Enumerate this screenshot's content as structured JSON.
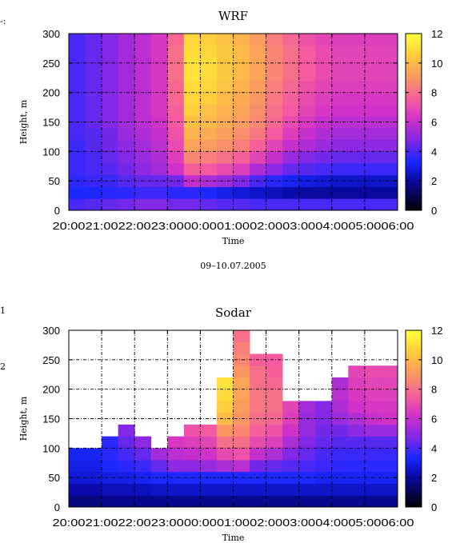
{
  "edge_marks": [
    "-:",
    "1",
    "2"
  ],
  "chart_data": [
    {
      "type": "heatmap",
      "title": "WRF",
      "xlabel": "Time",
      "ylabel": "Height, m",
      "date_label": "09–10.07.2005",
      "x_ticks": [
        "20:00",
        "21:00",
        "22:00",
        "23:00",
        "00:00",
        "01:00",
        "02:00",
        "03:00",
        "04:00",
        "05:00",
        "06:00"
      ],
      "y_ticks": [
        "0",
        "50",
        "100",
        "150",
        "200",
        "250",
        "300"
      ],
      "ylim": [
        0,
        300
      ],
      "time_start": "20:00",
      "time_step_minutes": 30,
      "height_levels_m": [
        20,
        40,
        60,
        80,
        100,
        120,
        140,
        160,
        180,
        200,
        220,
        240,
        260,
        280,
        300
      ],
      "colorbar": {
        "min": 0,
        "max": 12,
        "ticks": [
          "0",
          "2",
          "4",
          "6",
          "8",
          "10",
          "12"
        ]
      },
      "grid": true,
      "values": [
        [
          4.0,
          4.2,
          4.4,
          4.6,
          4.8,
          4.8,
          4.6,
          4.6,
          4.4,
          4.2,
          4.2,
          4.0,
          4.0,
          4.0,
          4.0,
          4.0,
          4.0,
          4.0,
          4.0,
          4.0
        ],
        [
          3.4,
          3.4,
          3.6,
          3.6,
          3.8,
          3.8,
          3.6,
          3.6,
          3.4,
          3.0,
          2.8,
          2.6,
          2.4,
          2.2,
          2.0,
          2.0,
          2.0,
          2.0,
          2.0,
          2.0
        ],
        [
          3.6,
          3.8,
          3.8,
          4.2,
          4.4,
          4.4,
          4.6,
          6.0,
          5.6,
          5.2,
          4.8,
          4.0,
          3.6,
          3.2,
          3.0,
          2.8,
          2.6,
          2.6,
          2.6,
          2.6
        ],
        [
          3.8,
          4.0,
          4.2,
          4.6,
          5.0,
          5.4,
          6.2,
          7.6,
          7.4,
          7.0,
          6.6,
          5.6,
          5.0,
          4.4,
          4.2,
          4.0,
          3.8,
          3.8,
          3.8,
          3.8
        ],
        [
          3.8,
          4.0,
          4.4,
          4.8,
          5.2,
          5.6,
          6.6,
          8.6,
          8.4,
          8.0,
          7.6,
          6.8,
          6.0,
          5.2,
          4.8,
          4.6,
          4.4,
          4.4,
          4.4,
          4.4
        ],
        [
          3.8,
          4.2,
          4.6,
          5.0,
          5.4,
          5.8,
          7.0,
          9.4,
          9.2,
          8.8,
          8.4,
          7.6,
          6.8,
          6.0,
          5.6,
          5.2,
          5.0,
          5.0,
          5.0,
          5.0
        ],
        [
          4.0,
          4.2,
          4.6,
          5.2,
          5.6,
          6.0,
          7.2,
          9.8,
          9.6,
          9.2,
          8.8,
          8.2,
          7.4,
          6.6,
          6.0,
          5.6,
          5.4,
          5.4,
          5.4,
          5.4
        ],
        [
          4.0,
          4.4,
          4.8,
          5.4,
          5.8,
          6.2,
          7.4,
          10.2,
          10.0,
          9.6,
          9.2,
          8.6,
          7.8,
          7.0,
          6.4,
          6.0,
          5.8,
          5.8,
          5.8,
          5.8
        ],
        [
          4.0,
          4.4,
          4.8,
          5.4,
          5.8,
          6.4,
          7.6,
          10.6,
          10.2,
          9.8,
          9.4,
          8.8,
          8.0,
          7.4,
          6.8,
          6.4,
          6.2,
          6.2,
          6.2,
          6.2
        ],
        [
          4.0,
          4.4,
          4.8,
          5.4,
          5.8,
          6.4,
          7.8,
          10.8,
          10.6,
          10.0,
          9.6,
          9.0,
          8.2,
          7.6,
          7.0,
          6.6,
          6.4,
          6.4,
          6.4,
          6.4
        ],
        [
          4.0,
          4.4,
          4.8,
          5.4,
          5.8,
          6.4,
          7.8,
          11.0,
          10.8,
          10.2,
          9.8,
          9.2,
          8.4,
          7.8,
          7.2,
          6.8,
          6.6,
          6.6,
          6.6,
          6.6
        ],
        [
          4.0,
          4.4,
          4.8,
          5.4,
          5.8,
          6.4,
          8.0,
          11.2,
          11.0,
          10.4,
          10.0,
          9.4,
          8.6,
          8.0,
          7.4,
          7.0,
          6.8,
          6.8,
          6.8,
          6.8
        ],
        [
          4.0,
          4.4,
          4.8,
          5.4,
          5.8,
          6.4,
          8.0,
          11.2,
          11.0,
          10.4,
          10.0,
          9.4,
          8.6,
          8.0,
          7.4,
          7.0,
          6.8,
          6.8,
          6.8,
          6.8
        ],
        [
          4.0,
          4.4,
          4.8,
          5.4,
          5.8,
          6.4,
          8.0,
          11.0,
          10.8,
          10.4,
          10.0,
          9.4,
          8.6,
          8.0,
          7.4,
          7.0,
          6.8,
          6.8,
          6.8,
          6.8
        ],
        [
          4.0,
          4.4,
          4.8,
          5.4,
          5.8,
          6.4,
          7.8,
          10.8,
          10.6,
          10.2,
          9.8,
          9.2,
          8.4,
          7.8,
          7.2,
          6.8,
          6.6,
          6.6,
          6.6,
          6.6
        ]
      ]
    },
    {
      "type": "heatmap",
      "title": "Sodar",
      "xlabel": "Time",
      "ylabel": "Height, m",
      "x_ticks": [
        "20:00",
        "21:00",
        "22:00",
        "23:00",
        "00:00",
        "01:00",
        "02:00",
        "03:00",
        "04:00",
        "05:00",
        "06:00"
      ],
      "y_ticks": [
        "0",
        "50",
        "100",
        "150",
        "200",
        "250",
        "300"
      ],
      "ylim": [
        0,
        300
      ],
      "time_start": "20:00",
      "time_step_minutes": 30,
      "height_levels_m": [
        20,
        40,
        60,
        80,
        100,
        120,
        140,
        160,
        180,
        200,
        220,
        240,
        260,
        280,
        300
      ],
      "colorbar": {
        "min": 0,
        "max": 12,
        "ticks": [
          "0",
          "2",
          "4",
          "6",
          "8",
          "10",
          "12"
        ]
      },
      "grid": true,
      "top_height_m": [
        100,
        100,
        120,
        140,
        120,
        100,
        120,
        140,
        140,
        220,
        300,
        260,
        260,
        180,
        180,
        180,
        220,
        240,
        240,
        240
      ],
      "values": [
        [
          1.6,
          1.6,
          1.8,
          1.8,
          1.8,
          1.8,
          1.8,
          1.8,
          1.8,
          1.8,
          1.8,
          1.8,
          1.8,
          1.8,
          1.8,
          1.8,
          1.8,
          1.8,
          1.8,
          1.8
        ],
        [
          2.2,
          2.2,
          2.4,
          2.4,
          2.4,
          2.6,
          2.6,
          2.6,
          2.6,
          2.6,
          2.6,
          2.6,
          2.6,
          2.6,
          2.6,
          2.6,
          2.6,
          2.6,
          2.6,
          2.6
        ],
        [
          2.8,
          2.8,
          3.0,
          3.0,
          3.2,
          3.4,
          3.4,
          3.4,
          3.4,
          3.4,
          3.4,
          3.4,
          3.4,
          3.4,
          3.4,
          3.2,
          3.2,
          3.2,
          3.2,
          3.2
        ],
        [
          3.0,
          3.0,
          3.4,
          3.6,
          3.8,
          4.4,
          5.0,
          5.0,
          5.2,
          5.6,
          5.8,
          4.6,
          4.4,
          4.2,
          4.0,
          3.8,
          3.6,
          3.6,
          3.6,
          3.6
        ],
        [
          3.2,
          3.2,
          3.6,
          4.0,
          4.4,
          5.4,
          5.8,
          6.0,
          6.2,
          7.0,
          7.2,
          6.0,
          5.6,
          4.8,
          4.4,
          4.0,
          3.8,
          3.8,
          3.8,
          3.8
        ],
        [
          null,
          null,
          3.6,
          4.4,
          5.0,
          null,
          6.4,
          6.6,
          6.8,
          8.0,
          8.0,
          7.0,
          6.6,
          5.6,
          4.8,
          4.4,
          4.2,
          4.2,
          4.2,
          4.2
        ],
        [
          null,
          null,
          null,
          4.8,
          null,
          null,
          null,
          7.2,
          7.4,
          9.0,
          8.6,
          7.6,
          7.2,
          6.2,
          5.2,
          4.6,
          4.6,
          5.0,
          5.2,
          5.2
        ],
        [
          null,
          null,
          null,
          null,
          null,
          null,
          null,
          null,
          null,
          10.0,
          9.0,
          8.0,
          7.8,
          6.6,
          5.2,
          4.8,
          5.2,
          5.6,
          6.0,
          6.2
        ],
        [
          null,
          null,
          null,
          null,
          null,
          null,
          null,
          null,
          null,
          10.6,
          9.2,
          8.2,
          8.0,
          6.8,
          5.4,
          4.8,
          5.6,
          6.2,
          6.4,
          6.4
        ],
        [
          null,
          null,
          null,
          null,
          null,
          null,
          null,
          null,
          null,
          11.0,
          9.4,
          8.2,
          8.0,
          null,
          null,
          null,
          5.8,
          6.4,
          6.6,
          6.6
        ],
        [
          null,
          null,
          null,
          null,
          null,
          null,
          null,
          null,
          null,
          11.2,
          9.4,
          8.0,
          7.8,
          null,
          null,
          null,
          5.6,
          6.6,
          6.8,
          6.8
        ],
        [
          null,
          null,
          null,
          null,
          null,
          null,
          null,
          null,
          null,
          null,
          9.0,
          8.0,
          7.6,
          null,
          null,
          null,
          null,
          6.8,
          7.0,
          7.0
        ],
        [
          null,
          null,
          null,
          null,
          null,
          null,
          null,
          null,
          null,
          null,
          8.6,
          7.6,
          7.4,
          null,
          null,
          null,
          null,
          null,
          null,
          null
        ],
        [
          null,
          null,
          null,
          null,
          null,
          null,
          null,
          null,
          null,
          null,
          8.4,
          null,
          null,
          null,
          null,
          null,
          null,
          null,
          null,
          null
        ],
        [
          null,
          null,
          null,
          null,
          null,
          null,
          null,
          null,
          null,
          null,
          8.0,
          null,
          null,
          null,
          null,
          null,
          null,
          null,
          null,
          null
        ]
      ]
    }
  ]
}
